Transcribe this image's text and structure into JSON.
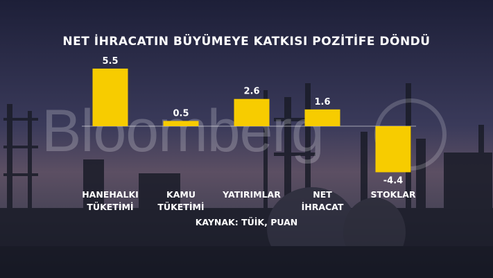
{
  "chart_data": {
    "type": "bar",
    "title": "NET İHRACATIN BÜYÜMEYE KATKISI POZİTİFE DÖNDÜ",
    "source": "KAYNAK: TÜİK, PUAN",
    "categories": [
      [
        "HANEHALKI",
        "TÜKETİMİ"
      ],
      [
        "KAMU",
        "TÜKETİMİ"
      ],
      [
        "YATIRIMLAR"
      ],
      [
        "NET",
        "İHRACAT"
      ],
      [
        "STOKLAR"
      ]
    ],
    "values": [
      5.5,
      0.5,
      2.6,
      1.6,
      -4.4
    ],
    "value_labels": [
      "5.5",
      "0.5",
      "2.6",
      "1.6",
      "-4.4"
    ],
    "bar_color": "#f7cc00",
    "ylim": [
      -4.4,
      5.5
    ],
    "grid": false,
    "legend": "none"
  },
  "watermark": "Bloomberg"
}
